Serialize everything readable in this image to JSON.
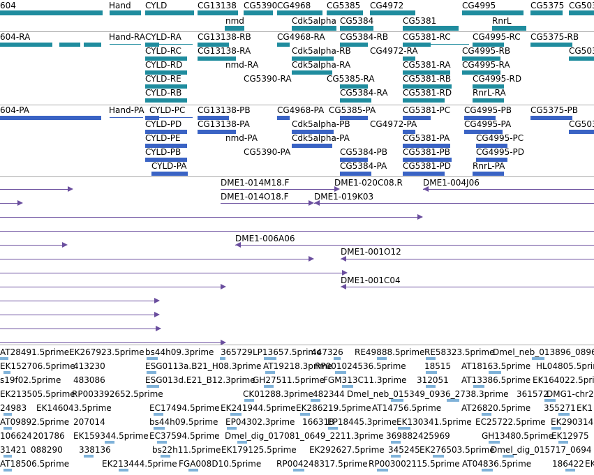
{
  "colors": {
    "gene_teal": "#1f8c9e",
    "gene_blue": "#3a63c4",
    "clone_purple": "#6a4e9e",
    "est_light": "#7fb2d9",
    "separator": "#a9a9a9"
  },
  "genes": [
    {
      "label": "604"
    },
    {
      "label": "Hand"
    },
    {
      "label": "CYLD"
    },
    {
      "label": "CG13138"
    },
    {
      "label": "CG5390"
    },
    {
      "label": "CG4968"
    },
    {
      "label": "CG5385"
    },
    {
      "label": "CG4972"
    },
    {
      "label": "CG4995"
    },
    {
      "label": "CG5375"
    },
    {
      "label": "CG503"
    },
    {
      "label": "nmd"
    },
    {
      "label": "Cdk5alpha"
    },
    {
      "label": "CG5384"
    },
    {
      "label": "CG5381"
    },
    {
      "label": "RnrL"
    }
  ],
  "transcripts_ra": [
    "604-RA",
    "Hand-RA",
    "CYLD-RA",
    "CG13138-RB",
    "CG4968-RA",
    "CG5384-RB",
    "CG5381-RC",
    "CG4995-RC",
    "CG5375-RB",
    "CYLD-RC",
    "CG13138-RA",
    "Cdk5alpha-RB",
    "CG4972-RA",
    "CG4995-RB",
    "CG503",
    "CYLD-RD",
    "nmd-RA",
    "Cdk5alpha-RA",
    "CG5381-RA",
    "CG4995-RA",
    "CYLD-RE",
    "CG5390-RA",
    "CG5385-RA",
    "CG5381-RB",
    "CG4995-RD",
    "CYLD-RB",
    "CG5384-RA",
    "CG5381-RD",
    "RnrL-RA"
  ],
  "transcripts_pa": [
    "604-PA",
    "Hand-PA",
    "CYLD-PC",
    "CG13138-PB",
    "CG4968-PA",
    "CG5385-PA",
    "CG5381-PC",
    "CG4995-PB",
    "CG5375-PB",
    "CYLD-PD",
    "CG13138-PA",
    "Cdk5alpha-PB",
    "CG4972-PA",
    "CG4995-PA",
    "CG503",
    "CYLD-PE",
    "nmd-PA",
    "Cdk5alpha-PA",
    "CG5381-PA",
    "CG4995-PC",
    "CYLD-PB",
    "CG5390-PA",
    "CG5384-PB",
    "CG5381-PB",
    "CG4995-PD",
    "CYLD-PA",
    "CG5384-PA",
    "CG5381-PD",
    "RnrL-PA"
  ],
  "clones": [
    "DME1-014M18.F",
    "DME1-020C08.R",
    "DME1-004J06",
    "DME1-014O18.F",
    "DME1-019K03",
    "DME1-006A06",
    "DME1-001O12",
    "DME1-001C04"
  ],
  "ests": [
    "AT28491.5prime",
    "EK267923.5prime",
    "bs44h09.3prime",
    "365729",
    "LP13657.5prime",
    "447326",
    "RE49888.5prime",
    "RE58323.5prime",
    "Dmel_neb_013896_0896",
    "EK152706.5prime",
    "413230",
    "AT19218.3prime",
    "RP001024536.5prime",
    "18515",
    "AT18163.5prime",
    "HL04805.5prime",
    "ESG0113a.B21_H08.3prime",
    "s19f02.5prime",
    "483086",
    "ESG013d.E21_B12.3prime",
    "GH27511.5prime",
    "FGM313C11.3prime",
    "312051",
    "AT13386.5prime",
    "EK164022.5prime",
    "EK213505.5prime",
    "RP003392652.5prime",
    "CK01288.3prime",
    "482344",
    "Dmel_neb_015349_0936_2738.3prime",
    "361572",
    "DMG1-chr2l",
    "24983",
    "EK146043.5prime",
    "EC17494.5prime",
    "EK241944.5prime",
    "EK286219.5prime",
    "AT14756.5prime",
    "AT26820.5prime",
    "355271",
    "EK1",
    "AT09892.5prime",
    "207014",
    "bs44h09.5prime",
    "EP04302.3prime",
    "166318",
    "EP18445.3prime",
    "EK130341.5prime",
    "EC25722.5prime",
    "EK290314",
    "106624",
    "201786",
    "EK159344.5prime",
    "EC37594.5prime",
    "Dmel_dig_017081_0649_2211.3prime",
    "369882",
    "425969",
    "GH13480.5prime",
    "EK12975",
    "31421",
    "088290",
    "338136",
    "bs22h11.5prime",
    "EK179125.5prime",
    "EK292627.5prime",
    "345245",
    "EK276503.5prime",
    "Dmel_dig_015717_0694",
    "AT18506.5prime",
    "EK213444.5prime",
    "FGA008D10.5prime",
    "RP004248317.5prime",
    "RP003002115.5prime",
    "AT04836.5prime",
    "186422",
    "EK"
  ]
}
